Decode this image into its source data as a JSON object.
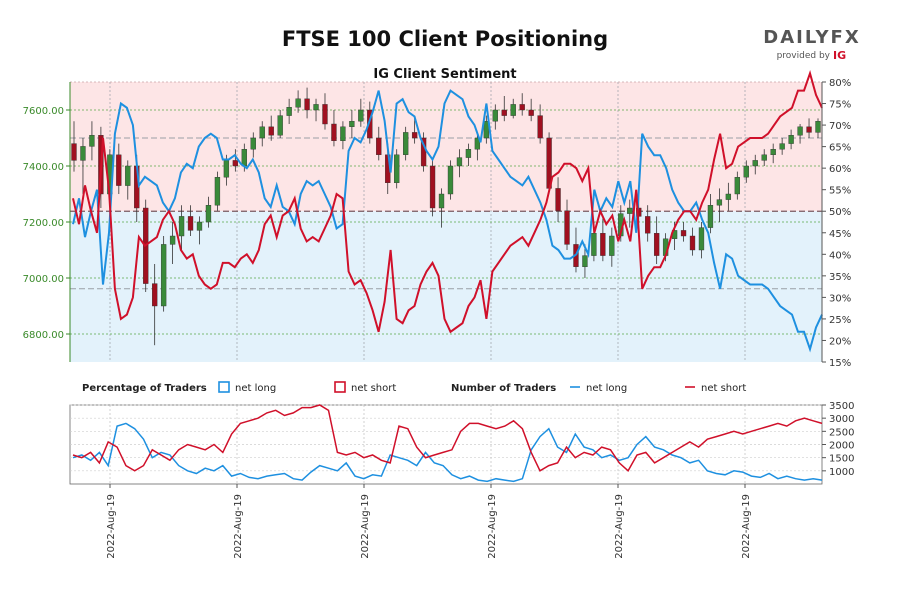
{
  "header": {
    "title": "FTSE 100 Client Positioning",
    "subtitle": "IG Client Sentiment",
    "brand_main": "DAILYFX",
    "brand_sub": "provided by",
    "brand_ig": "IG"
  },
  "colors": {
    "long": "#1e90e0",
    "short": "#d0102a",
    "short_zone": "#fde5e6",
    "long_zone": "#e3f2fb",
    "candle_up": "#3a8a3a",
    "candle_down": "#a01020",
    "price_axis": "#3a8a2a"
  },
  "legend": {
    "pct_heading": "Percentage of Traders",
    "pct_long": "net long",
    "pct_short": "net short",
    "num_heading": "Number of Traders",
    "num_long": "net long",
    "num_short": "net short"
  },
  "chart_data": [
    {
      "type": "candlestick",
      "name": "price",
      "y_ticks": [
        "6800.00",
        "7000.00",
        "7200.00",
        "7400.00",
        "7600.00"
      ],
      "y_tick_values": [
        6800,
        7000,
        7200,
        7400,
        7600
      ],
      "ylim": [
        6700,
        7700
      ],
      "ohlc": [
        [
          7480,
          7560,
          7380,
          7420
        ],
        [
          7420,
          7500,
          7300,
          7470
        ],
        [
          7470,
          7560,
          7420,
          7510
        ],
        [
          7510,
          7540,
          7250,
          7300
        ],
        [
          7300,
          7460,
          7250,
          7440
        ],
        [
          7440,
          7480,
          7300,
          7330
        ],
        [
          7330,
          7420,
          7280,
          7400
        ],
        [
          7400,
          7440,
          7200,
          7250
        ],
        [
          7250,
          7280,
          6950,
          6980
        ],
        [
          6980,
          7050,
          6760,
          6900
        ],
        [
          6900,
          7150,
          6880,
          7120
        ],
        [
          7120,
          7200,
          7050,
          7150
        ],
        [
          7150,
          7260,
          7100,
          7220
        ],
        [
          7220,
          7260,
          7150,
          7170
        ],
        [
          7170,
          7220,
          7120,
          7200
        ],
        [
          7200,
          7290,
          7180,
          7260
        ],
        [
          7260,
          7380,
          7240,
          7360
        ],
        [
          7360,
          7440,
          7330,
          7420
        ],
        [
          7420,
          7460,
          7380,
          7400
        ],
        [
          7400,
          7480,
          7380,
          7460
        ],
        [
          7460,
          7520,
          7430,
          7500
        ],
        [
          7500,
          7560,
          7470,
          7540
        ],
        [
          7540,
          7580,
          7490,
          7510
        ],
        [
          7510,
          7600,
          7500,
          7580
        ],
        [
          7580,
          7640,
          7550,
          7610
        ],
        [
          7610,
          7670,
          7590,
          7640
        ],
        [
          7640,
          7680,
          7570,
          7600
        ],
        [
          7600,
          7640,
          7560,
          7620
        ],
        [
          7620,
          7660,
          7530,
          7550
        ],
        [
          7550,
          7600,
          7470,
          7490
        ],
        [
          7490,
          7560,
          7460,
          7540
        ],
        [
          7540,
          7600,
          7500,
          7560
        ],
        [
          7560,
          7640,
          7540,
          7600
        ],
        [
          7600,
          7630,
          7480,
          7500
        ],
        [
          7500,
          7540,
          7420,
          7440
        ],
        [
          7440,
          7480,
          7300,
          7340
        ],
        [
          7340,
          7460,
          7320,
          7440
        ],
        [
          7440,
          7540,
          7420,
          7520
        ],
        [
          7520,
          7580,
          7480,
          7500
        ],
        [
          7500,
          7520,
          7380,
          7400
        ],
        [
          7400,
          7420,
          7220,
          7250
        ],
        [
          7250,
          7320,
          7180,
          7300
        ],
        [
          7300,
          7420,
          7280,
          7400
        ],
        [
          7400,
          7460,
          7360,
          7430
        ],
        [
          7430,
          7480,
          7400,
          7460
        ],
        [
          7460,
          7520,
          7420,
          7500
        ],
        [
          7500,
          7580,
          7480,
          7560
        ],
        [
          7560,
          7620,
          7530,
          7600
        ],
        [
          7600,
          7650,
          7560,
          7580
        ],
        [
          7580,
          7640,
          7570,
          7620
        ],
        [
          7620,
          7660,
          7580,
          7600
        ],
        [
          7600,
          7640,
          7560,
          7580
        ],
        [
          7580,
          7620,
          7480,
          7500
        ],
        [
          7500,
          7520,
          7300,
          7320
        ],
        [
          7320,
          7360,
          7200,
          7240
        ],
        [
          7240,
          7280,
          7100,
          7120
        ],
        [
          7120,
          7180,
          7020,
          7040
        ],
        [
          7040,
          7120,
          7000,
          7080
        ],
        [
          7080,
          7200,
          7060,
          7160
        ],
        [
          7160,
          7220,
          7060,
          7080
        ],
        [
          7080,
          7180,
          7040,
          7150
        ],
        [
          7150,
          7260,
          7130,
          7230
        ],
        [
          7230,
          7280,
          7180,
          7250
        ],
        [
          7250,
          7300,
          7200,
          7220
        ],
        [
          7220,
          7260,
          7130,
          7160
        ],
        [
          7160,
          7220,
          7050,
          7080
        ],
        [
          7080,
          7160,
          7060,
          7140
        ],
        [
          7140,
          7200,
          7100,
          7170
        ],
        [
          7170,
          7200,
          7130,
          7150
        ],
        [
          7150,
          7180,
          7080,
          7100
        ],
        [
          7100,
          7200,
          7070,
          7180
        ],
        [
          7180,
          7300,
          7160,
          7260
        ],
        [
          7260,
          7320,
          7200,
          7280
        ],
        [
          7280,
          7340,
          7240,
          7300
        ],
        [
          7300,
          7380,
          7280,
          7360
        ],
        [
          7360,
          7420,
          7340,
          7400
        ],
        [
          7400,
          7440,
          7370,
          7420
        ],
        [
          7420,
          7460,
          7400,
          7440
        ],
        [
          7440,
          7480,
          7410,
          7460
        ],
        [
          7460,
          7500,
          7440,
          7480
        ],
        [
          7480,
          7530,
          7460,
          7510
        ],
        [
          7510,
          7550,
          7480,
          7540
        ],
        [
          7540,
          7570,
          7500,
          7520
        ],
        [
          7520,
          7570,
          7500,
          7560
        ]
      ]
    },
    {
      "type": "line",
      "name": "percentage",
      "right_ticks": [
        "15%",
        "20%",
        "25%",
        "30%",
        "35%",
        "40%",
        "45%",
        "50%",
        "55%",
        "60%",
        "65%",
        "70%",
        "75%",
        "80%"
      ],
      "right_tick_values": [
        15,
        20,
        25,
        30,
        35,
        40,
        45,
        50,
        55,
        60,
        65,
        70,
        75,
        80
      ],
      "ylim": [
        15,
        80
      ],
      "reference_lines": [
        32,
        50,
        67
      ],
      "series": [
        {
          "name": "net long",
          "values": [
            47,
            53,
            44,
            50,
            55,
            33,
            45,
            68,
            75,
            74,
            70,
            56,
            58,
            57,
            56,
            52,
            50,
            53,
            59,
            61,
            60,
            65,
            67,
            68,
            67,
            62,
            62,
            63,
            61,
            60,
            62,
            59,
            53,
            51,
            56,
            51,
            50,
            47,
            54,
            57,
            56,
            57,
            54,
            51,
            46,
            47,
            64,
            67,
            66,
            69,
            73,
            78,
            71,
            59,
            75,
            76,
            73,
            72,
            67,
            64,
            62,
            65,
            75,
            78,
            77,
            76,
            72,
            70,
            66,
            75,
            64,
            62,
            60,
            58,
            57,
            56,
            58,
            55,
            52,
            48,
            42,
            41,
            39,
            39,
            40,
            43,
            40,
            55,
            50,
            53,
            51,
            57,
            52,
            57,
            45,
            68,
            65,
            63,
            63,
            60,
            55,
            52,
            50,
            50,
            52,
            48,
            45,
            38,
            32,
            40,
            39,
            35,
            34,
            33,
            33,
            33,
            32,
            30,
            28,
            27,
            26,
            22,
            22,
            18,
            23,
            26
          ]
        },
        {
          "name": "net short",
          "values": [
            53,
            47,
            56,
            50,
            45,
            67,
            55,
            32,
            25,
            26,
            30,
            44,
            42,
            43,
            44,
            48,
            50,
            47,
            41,
            39,
            40,
            35,
            33,
            32,
            33,
            38,
            38,
            37,
            39,
            40,
            38,
            41,
            47,
            49,
            44,
            49,
            50,
            53,
            46,
            43,
            44,
            43,
            46,
            49,
            54,
            53,
            36,
            33,
            34,
            31,
            27,
            22,
            29,
            41,
            25,
            24,
            27,
            28,
            33,
            36,
            38,
            35,
            25,
            22,
            23,
            24,
            28,
            30,
            34,
            25,
            36,
            38,
            40,
            42,
            43,
            44,
            42,
            45,
            48,
            52,
            58,
            59,
            61,
            61,
            60,
            57,
            60,
            45,
            50,
            47,
            49,
            43,
            48,
            43,
            55,
            32,
            35,
            37,
            37,
            40,
            45,
            48,
            50,
            50,
            48,
            52,
            55,
            62,
            68,
            60,
            61,
            65,
            66,
            67,
            67,
            67,
            68,
            70,
            72,
            73,
            74,
            78,
            78,
            82,
            77,
            74
          ]
        }
      ]
    },
    {
      "type": "line",
      "name": "number of traders",
      "y_ticks": [
        "1000",
        "1500",
        "2000",
        "2500",
        "3000",
        "3500"
      ],
      "y_tick_values": [
        1000,
        1500,
        2000,
        2500,
        3000,
        3500
      ],
      "ylim": [
        500,
        3500
      ],
      "series": [
        {
          "name": "net long",
          "values": [
            1500,
            1600,
            1400,
            1700,
            1200,
            2700,
            2800,
            2600,
            2200,
            1500,
            1700,
            1600,
            1200,
            1000,
            900,
            1100,
            1000,
            1200,
            800,
            900,
            750,
            700,
            800,
            850,
            900,
            700,
            650,
            950,
            1200,
            1100,
            1000,
            1300,
            800,
            700,
            850,
            800,
            1600,
            1500,
            1400,
            1200,
            1700,
            1300,
            1200,
            850,
            700,
            800,
            650,
            600,
            700,
            650,
            600,
            700,
            1800,
            2300,
            2600,
            1900,
            1700,
            2400,
            1900,
            1800,
            1500,
            1600,
            1400,
            1500,
            2000,
            2300,
            1900,
            1800,
            1600,
            1500,
            1300,
            1400,
            1000,
            900,
            850,
            1000,
            950,
            800,
            750,
            900,
            700,
            800,
            700,
            650,
            700,
            650
          ]
        },
        {
          "name": "net short",
          "values": [
            1600,
            1500,
            1700,
            1300,
            2100,
            1900,
            1200,
            1000,
            1200,
            1800,
            1600,
            1400,
            1800,
            2000,
            1900,
            1800,
            2000,
            1700,
            2400,
            2800,
            2900,
            3000,
            3200,
            3300,
            3100,
            3200,
            3400,
            3400,
            3500,
            3300,
            1700,
            1600,
            1700,
            1500,
            1600,
            1400,
            1300,
            2700,
            2600,
            1900,
            1500,
            1600,
            1700,
            1800,
            2500,
            2800,
            2800,
            2700,
            2600,
            2700,
            2900,
            2600,
            1700,
            1000,
            1200,
            1300,
            1900,
            1500,
            1700,
            1600,
            1900,
            1800,
            1300,
            1000,
            1600,
            1700,
            1300,
            1500,
            1700,
            1900,
            2100,
            1900,
            2200,
            2300,
            2400,
            2500,
            2400,
            2500,
            2600,
            2700,
            2800,
            2700,
            2900,
            3000,
            2900,
            2800
          ]
        }
      ]
    }
  ],
  "x_labels": [
    "2022-Aug-19",
    "2022-Aug-19",
    "2022-Aug-19",
    "2022-Aug-19",
    "2022-Aug-19",
    "2022-Aug-19"
  ]
}
